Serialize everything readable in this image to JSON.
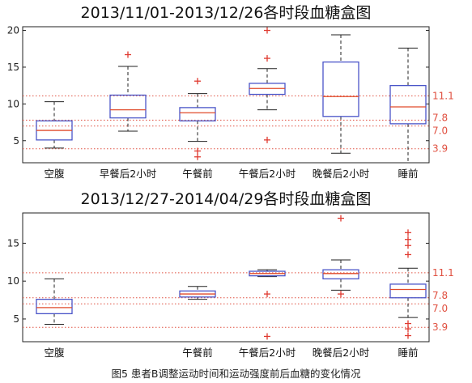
{
  "caption": "图5 患者B调整运动时间和运动强度前后血糖的变化情况",
  "colors": {
    "box": "#4a55c8",
    "median": "#e04a2a",
    "outlier": "#e03a30",
    "whisker": "#222222",
    "reference": "#e05040"
  },
  "chart_data": [
    {
      "type": "box",
      "title": "2013/11/01-2013/12/26各时段血糖盒图",
      "ylim": [
        2,
        20.5
      ],
      "yticks": [
        5,
        10,
        15,
        20
      ],
      "reference_lines": [
        11.1,
        7.8,
        7.0,
        3.9
      ],
      "reference_labels": [
        "11.1",
        "7.8",
        "7.0",
        "3.9"
      ],
      "categories": [
        "空腹",
        "早餐后2小时",
        "午餐前",
        "午餐后2小时",
        "晚餐后2小时",
        "睡前"
      ],
      "boxes": [
        {
          "whisker_low": 4.0,
          "q1": 5.1,
          "median": 6.4,
          "q3": 7.7,
          "whisker_high": 10.3,
          "outliers": []
        },
        {
          "whisker_low": 6.3,
          "q1": 8.1,
          "median": 9.2,
          "q3": 11.2,
          "whisker_high": 15.1,
          "outliers": [
            16.7
          ]
        },
        {
          "whisker_low": 4.9,
          "q1": 7.7,
          "median": 8.8,
          "q3": 9.5,
          "whisker_high": 11.4,
          "outliers": [
            2.8,
            3.6,
            13.1
          ]
        },
        {
          "whisker_low": 9.2,
          "q1": 11.3,
          "median": 12.1,
          "q3": 12.8,
          "whisker_high": 14.8,
          "outliers": [
            5.1,
            16.2,
            20.0
          ]
        },
        {
          "whisker_low": 3.3,
          "q1": 8.3,
          "median": 11.0,
          "q3": 15.7,
          "whisker_high": 19.4,
          "outliers": []
        },
        {
          "whisker_low": 2.0,
          "q1": 7.3,
          "median": 9.6,
          "q3": 12.5,
          "whisker_high": 17.6,
          "outliers": []
        }
      ]
    },
    {
      "type": "box",
      "title": "2013/12/27-2014/04/29各时段血糖盒图",
      "ylim": [
        2,
        19
      ],
      "yticks": [
        5,
        10,
        15
      ],
      "reference_lines": [
        11.1,
        7.8,
        7.0,
        3.9
      ],
      "reference_labels": [
        "11.1",
        "7.8",
        "7.0",
        "3.9"
      ],
      "categories": [
        "空腹",
        "午餐前",
        "午餐后2小时",
        "晚餐后2小时",
        "睡前"
      ],
      "boxes": [
        {
          "whisker_low": 4.3,
          "q1": 5.7,
          "median": 6.5,
          "q3": 7.6,
          "whisker_high": 10.3,
          "outliers": []
        },
        {
          "whisker_low": 7.6,
          "q1": 7.9,
          "median": 8.3,
          "q3": 8.7,
          "whisker_high": 9.3,
          "outliers": []
        },
        {
          "whisker_low": 10.6,
          "q1": 10.7,
          "median": 11.0,
          "q3": 11.3,
          "whisker_high": 11.5,
          "outliers": [
            2.7,
            8.3
          ]
        },
        {
          "whisker_low": 8.8,
          "q1": 10.3,
          "median": 11.0,
          "q3": 11.5,
          "whisker_high": 12.8,
          "outliers": [
            8.3,
            18.3
          ]
        },
        {
          "whisker_low": 5.2,
          "q1": 7.8,
          "median": 8.9,
          "q3": 9.6,
          "whisker_high": 11.7,
          "outliers": [
            2.8,
            3.7,
            4.4,
            13.5,
            14.7,
            15.5,
            16.4
          ]
        }
      ]
    }
  ]
}
